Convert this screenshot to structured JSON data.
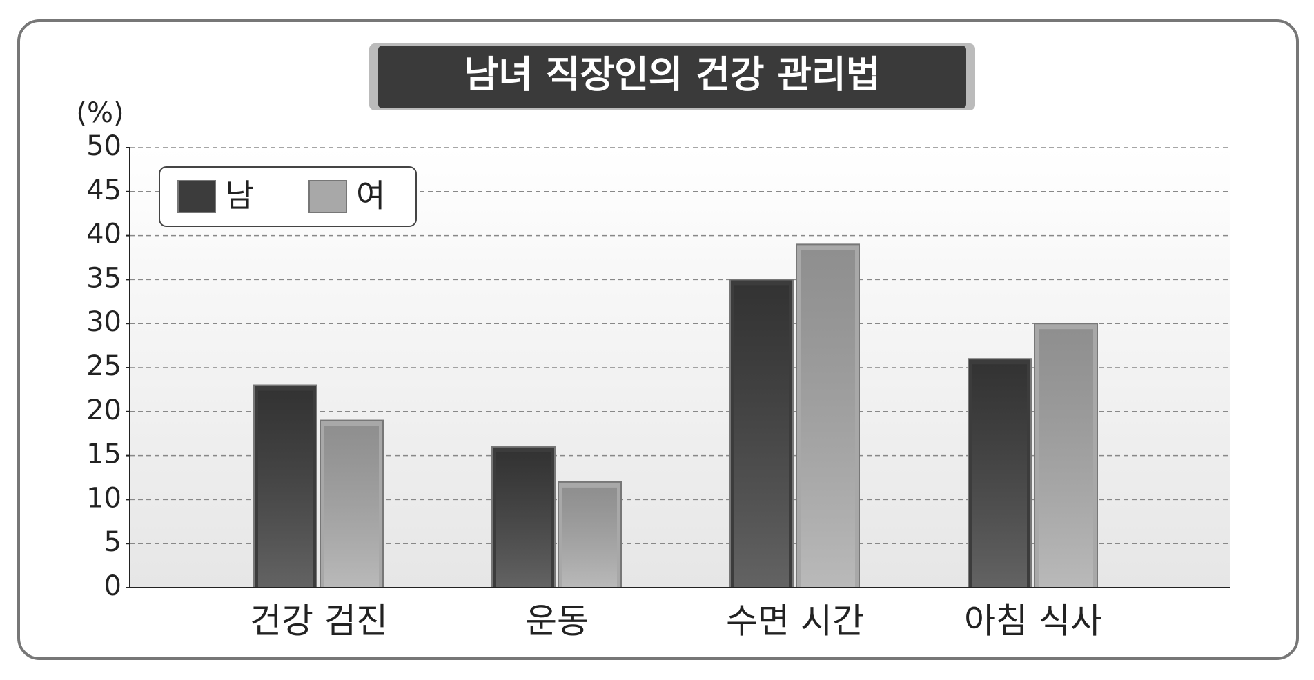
{
  "chart_data": {
    "type": "bar",
    "title": "남녀 직장인의 건강 관리법",
    "y_label": "(%)",
    "categories": [
      "건강 검진",
      "운동",
      "수면 시간",
      "아침 식사"
    ],
    "series": [
      {
        "name": "남",
        "color": "#3c3c3c",
        "values": [
          23,
          16,
          35,
          26
        ]
      },
      {
        "name": "여",
        "color": "#a8a8a8",
        "values": [
          19,
          12,
          39,
          30
        ]
      }
    ],
    "ylim": [
      0,
      50
    ],
    "yticks": [
      0,
      5,
      10,
      15,
      20,
      25,
      30,
      35,
      40,
      45,
      50
    ],
    "grid": true,
    "legend": "top-left"
  }
}
